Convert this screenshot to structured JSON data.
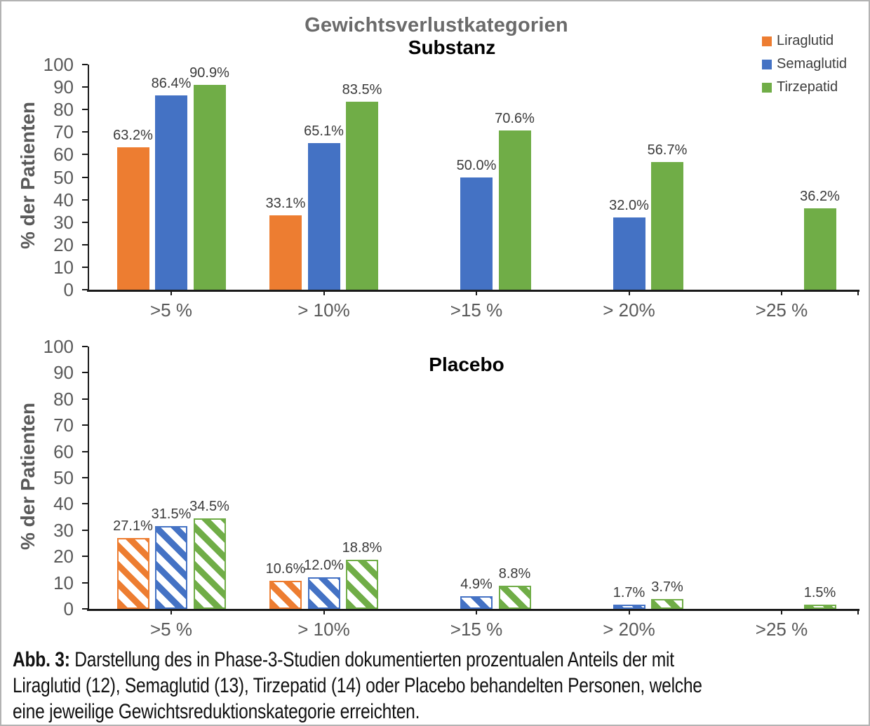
{
  "figure": {
    "title": "Gewichtsverlustkategorien",
    "legend": [
      {
        "name": "Liraglutid",
        "color": "#ED7D31"
      },
      {
        "name": "Semaglutid",
        "color": "#4472C4"
      },
      {
        "name": "Tirzepatid",
        "color": "#70AD47"
      }
    ],
    "caption": {
      "label": "Abb. 3:",
      "lines": [
        "Darstellung des in Phase-3-Studien dokumentierten prozentualen Anteils der mit",
        "Liraglutid (12), Semaglutid (13), Tirzepatid (14) oder Placebo behandelten Personen, welche",
        "eine jeweilige Gewichtsreduktionskategorie erreichten."
      ]
    }
  },
  "chart_data": [
    {
      "type": "bar",
      "title": "Substanz",
      "bar_style": "solid",
      "categories": [
        ">5 %",
        "> 10%",
        ">15 %",
        "> 20%",
        ">25 %"
      ],
      "series": [
        {
          "name": "Liraglutid",
          "color": "#ED7D31",
          "values": [
            63.2,
            33.1,
            null,
            null,
            null
          ]
        },
        {
          "name": "Semaglutid",
          "color": "#4472C4",
          "values": [
            86.4,
            65.1,
            50.0,
            32.0,
            null
          ]
        },
        {
          "name": "Tirzepatid",
          "color": "#70AD47",
          "values": [
            90.9,
            83.5,
            70.6,
            56.7,
            36.2
          ]
        }
      ],
      "xlabel": "",
      "ylabel": "% der Patienten",
      "ylim": [
        0,
        100
      ],
      "ytick_step": 10,
      "grid": false,
      "data_labels": true,
      "data_label_format": "{value}%",
      "legend_position": "top-right"
    },
    {
      "type": "bar",
      "title": "Placebo",
      "bar_style": "hatched",
      "categories": [
        ">5 %",
        "> 10%",
        ">15 %",
        "> 20%",
        ">25 %"
      ],
      "series": [
        {
          "name": "Liraglutid",
          "color": "#ED7D31",
          "values": [
            27.1,
            10.6,
            null,
            null,
            null
          ]
        },
        {
          "name": "Semaglutid",
          "color": "#4472C4",
          "values": [
            31.5,
            12.0,
            4.9,
            1.7,
            null
          ]
        },
        {
          "name": "Tirzepatid",
          "color": "#70AD47",
          "values": [
            34.5,
            18.8,
            8.8,
            3.7,
            1.5
          ]
        }
      ],
      "xlabel": "",
      "ylabel": "% der Patienten",
      "ylim": [
        0,
        100
      ],
      "ytick_step": 10,
      "grid": false,
      "data_labels": true,
      "data_label_format": "{value}%",
      "legend_position": "none"
    }
  ]
}
